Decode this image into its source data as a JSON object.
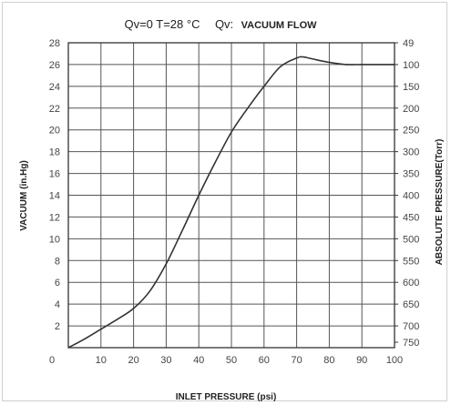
{
  "chart_data": {
    "type": "line",
    "title_left": "Qv=0 T=28 °C",
    "title_right_prefix": "Qv:",
    "title_right_bold": "VACUUM FLOW",
    "xlabel": "INLET PRESSURE (psi)",
    "ylabel_left": "VACUUM (in.Hg)",
    "ylabel_right": "ABSOLUTE PRESSURE(Torr)",
    "xlim": [
      0,
      100
    ],
    "ylim": [
      0,
      28
    ],
    "x_ticks": [
      0,
      10,
      20,
      30,
      40,
      50,
      60,
      70,
      80,
      90,
      100
    ],
    "y_ticks": [
      2,
      4,
      6,
      8,
      10,
      12,
      14,
      16,
      18,
      20,
      22,
      24,
      26,
      28
    ],
    "y_right_ticks": [
      {
        "y": 28,
        "label": "49"
      },
      {
        "y": 26,
        "label": "100"
      },
      {
        "y": 24,
        "label": "150"
      },
      {
        "y": 22,
        "label": "200"
      },
      {
        "y": 20,
        "label": "250"
      },
      {
        "y": 18,
        "label": "300"
      },
      {
        "y": 16,
        "label": "350"
      },
      {
        "y": 14,
        "label": "400"
      },
      {
        "y": 12,
        "label": "450"
      },
      {
        "y": 10,
        "label": "500"
      },
      {
        "y": 8,
        "label": "550"
      },
      {
        "y": 6,
        "label": "600"
      },
      {
        "y": 4,
        "label": "650"
      },
      {
        "y": 2,
        "label": "700"
      },
      {
        "y": 0.5,
        "label": "750"
      }
    ],
    "grid": true,
    "series": [
      {
        "color": "#333333",
        "x": [
          0,
          5,
          10,
          15,
          20,
          25,
          30,
          35,
          40,
          45,
          50,
          55,
          60,
          65,
          70,
          72,
          75,
          80,
          85,
          90,
          95,
          100
        ],
        "y": [
          0,
          0.8,
          1.7,
          2.6,
          3.6,
          5.2,
          7.7,
          10.8,
          14.0,
          17.0,
          19.8,
          22.0,
          24.0,
          25.8,
          26.6,
          26.7,
          26.5,
          26.2,
          26.0,
          26.0,
          26.0,
          26.0
        ]
      }
    ]
  }
}
